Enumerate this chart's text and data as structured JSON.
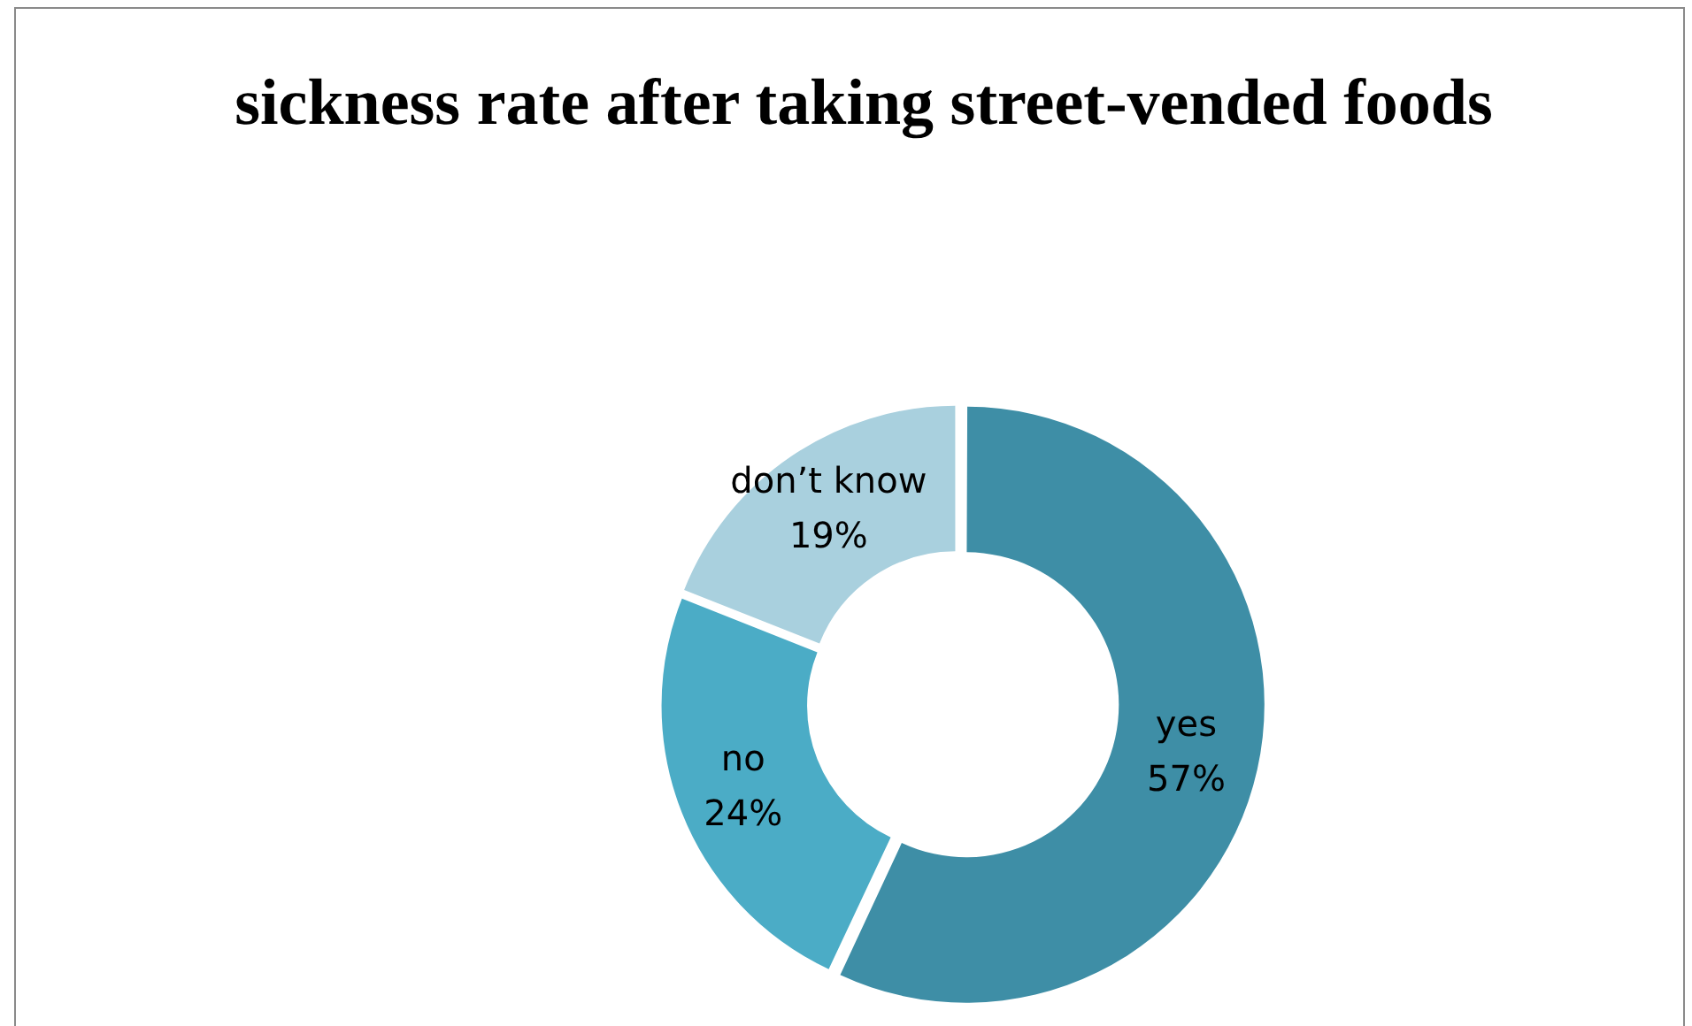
{
  "chart_data": {
    "type": "donut",
    "title": "sickness rate after taking street-vended foods",
    "categories": [
      "yes",
      "no",
      "don’t know"
    ],
    "values": [
      57,
      24,
      19
    ],
    "value_labels": [
      "57%",
      "24%",
      "19%"
    ],
    "colors": [
      "#3e8ea6",
      "#4bacc6",
      "#a9d0de"
    ],
    "legend": false
  }
}
